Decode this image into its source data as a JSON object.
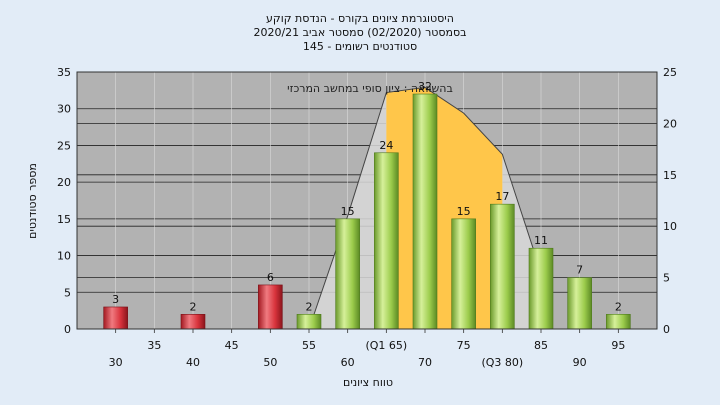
{
  "chart_data": {
    "type": "bar",
    "title_lines": [
      "היסטוגרמת ציונים בקורס - הנדסת קוקע",
      "בסמסטר  (02/2020)  סמסטר אביב 2020/21",
      "סטודנטים רשומים - 145"
    ],
    "ylabel": "מספר סטודנטים",
    "xlabel": "טווח ציונים",
    "ylim": [
      0,
      35
    ],
    "y_ticks": [
      0,
      5,
      10,
      15,
      20,
      25,
      30,
      35
    ],
    "y2lim": [
      0,
      25
    ],
    "y2_ticks": [
      0,
      5,
      10,
      15,
      20,
      25
    ],
    "grid": true,
    "x_tick_labels": [
      {
        "x": 30,
        "label": "30",
        "row": 2
      },
      {
        "x": 35,
        "label": "35",
        "row": 1
      },
      {
        "x": 40,
        "label": "40",
        "row": 2
      },
      {
        "x": 45,
        "label": "45",
        "row": 1
      },
      {
        "x": 50,
        "label": "50",
        "row": 2
      },
      {
        "x": 55,
        "label": "55",
        "row": 1
      },
      {
        "x": 60,
        "label": "60",
        "row": 2
      },
      {
        "x": 65,
        "label": "(Q1 65)",
        "row": 1
      },
      {
        "x": 70,
        "label": "70",
        "row": 2
      },
      {
        "x": 75,
        "label": "75",
        "row": 1
      },
      {
        "x": 80,
        "label": "(Q3 80)",
        "row": 2
      },
      {
        "x": 85,
        "label": "85",
        "row": 1
      },
      {
        "x": 90,
        "label": "90",
        "row": 2
      },
      {
        "x": 95,
        "label": "95",
        "row": 1
      }
    ],
    "bars": [
      {
        "x": 30,
        "value": 3,
        "color": "red"
      },
      {
        "x": 40,
        "value": 2,
        "color": "red"
      },
      {
        "x": 50,
        "value": 6,
        "color": "red"
      },
      {
        "x": 55,
        "value": 2,
        "color": "green"
      },
      {
        "x": 60,
        "value": 15,
        "color": "green"
      },
      {
        "x": 65,
        "value": 24,
        "color": "green"
      },
      {
        "x": 70,
        "value": 32,
        "color": "green"
      },
      {
        "x": 75,
        "value": 15,
        "color": "green"
      },
      {
        "x": 80,
        "value": 17,
        "color": "green"
      },
      {
        "x": 85,
        "value": 11,
        "color": "green"
      },
      {
        "x": 90,
        "value": 7,
        "color": "green"
      },
      {
        "x": 95,
        "value": 2,
        "color": "green"
      }
    ],
    "area_series": {
      "axis": "y2",
      "points": [
        {
          "x": 55,
          "y": 0
        },
        {
          "x": 60,
          "y": 11
        },
        {
          "x": 65,
          "y": 23
        },
        {
          "x": 70,
          "y": 23.5
        },
        {
          "x": 75,
          "y": 21
        },
        {
          "x": 80,
          "y": 17
        },
        {
          "x": 85,
          "y": 5.5
        }
      ],
      "highlight_range": [
        65,
        80
      ]
    },
    "annotation": "בהשוואה : ציון סופי במחשב המרכזי",
    "colors": {
      "background": "#e2ecf7",
      "plot_bg": "#b2b2b2",
      "red_bar": "#d8333c",
      "green_bar": "#9ccc4c",
      "highlight": "#ffc64a"
    }
  }
}
